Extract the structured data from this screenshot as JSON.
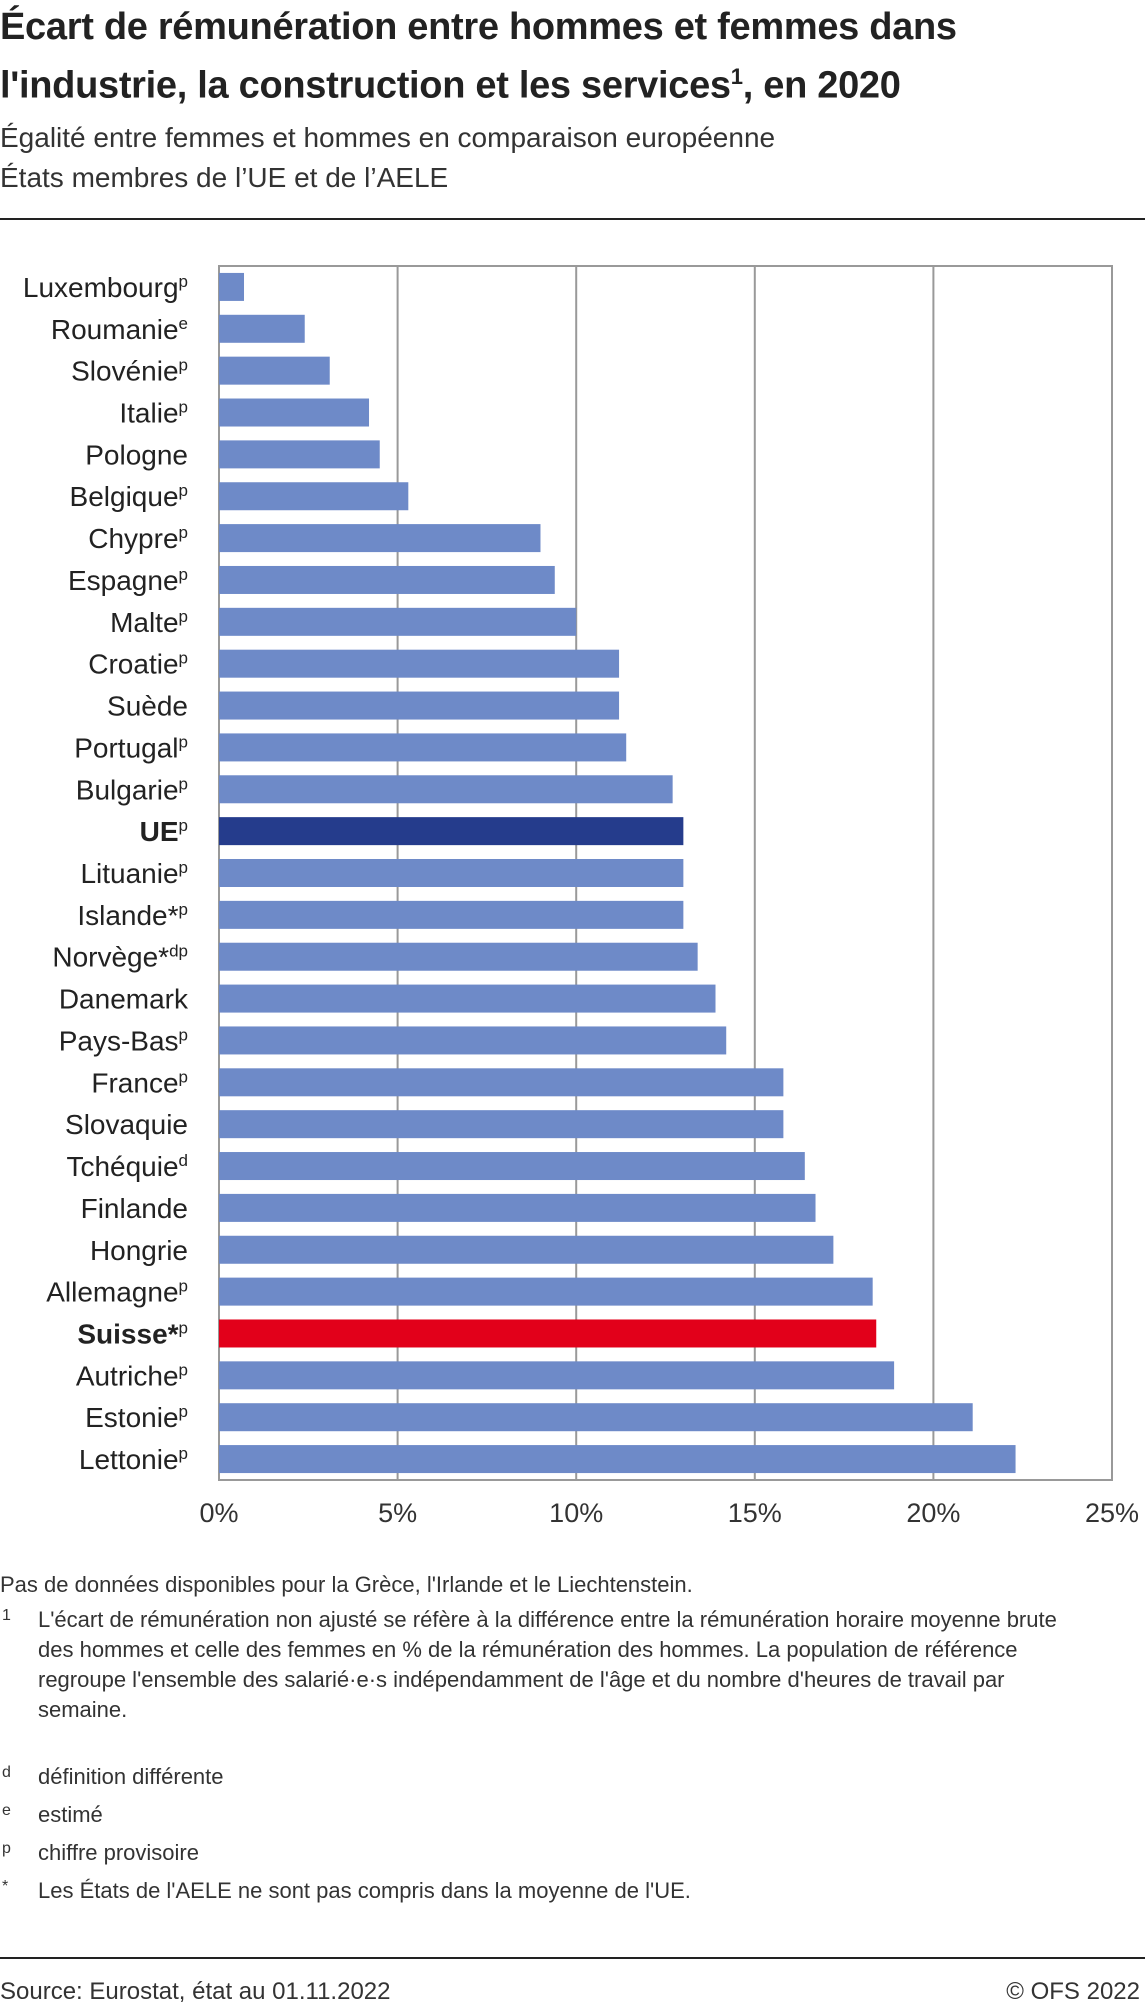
{
  "header": {
    "title": "Écart de rémunération entre hommes et femmes dans l'industrie, la construction et les services",
    "title_sup": "1",
    "title_end": ", en 2020",
    "subtitle1": "Égalité entre femmes et hommes en comparaison européenne",
    "subtitle2": "États membres de l’UE et de l’AELE"
  },
  "chart_data": {
    "type": "bar",
    "orientation": "horizontal",
    "categories": [
      "Luxembourg",
      "Roumanie",
      "Slovénie",
      "Italie",
      "Pologne",
      "Belgique",
      "Chypre",
      "Espagne",
      "Malte",
      "Croatie",
      "Suède",
      "Portugal",
      "Bulgarie",
      "UE",
      "Lituanie",
      "Islande*",
      "Norvège*",
      "Danemark",
      "Pays-Bas",
      "France",
      "Slovaquie",
      "Tchéquie",
      "Finlande",
      "Hongrie",
      "Allemagne",
      "Suisse*",
      "Autriche",
      "Estonie",
      "Lettonie"
    ],
    "category_marks": [
      "p",
      "e",
      "p",
      "p",
      "",
      "p",
      "p",
      "p",
      "p",
      "p",
      "",
      "p",
      "p",
      "p",
      "p",
      "p",
      "dp",
      "",
      "p",
      "p",
      "",
      "d",
      "",
      "",
      "p",
      "p",
      "p",
      "p",
      "p"
    ],
    "values": [
      0.7,
      2.4,
      3.1,
      4.2,
      4.5,
      5.3,
      9.0,
      9.4,
      10.0,
      11.2,
      11.2,
      11.4,
      12.7,
      13.0,
      13.0,
      13.0,
      13.4,
      13.9,
      14.2,
      15.8,
      15.8,
      16.4,
      16.7,
      17.2,
      18.3,
      18.4,
      18.9,
      21.1,
      22.3
    ],
    "highlight": {
      "UE": "#253c8c",
      "Suisse*": "#e2001a"
    },
    "bold_categories": [
      "UE",
      "Suisse*"
    ],
    "bar_color": "#6e8ac8",
    "xlim": [
      0,
      25
    ],
    "xticks": [
      "0%",
      "5%",
      "10%",
      "15%",
      "20%",
      "25%"
    ],
    "grid": true,
    "xlabel": "",
    "ylabel": ""
  },
  "footnotes": {
    "note": "Pas de données disponibles pour la Grèce, l'Irlande et le Liechtenstein.",
    "items": [
      {
        "mark": "1",
        "text": "L'écart de rémunération non ajusté se réfère à la différence entre la rémunération horaire moyenne brute des hommes et celle des femmes en % de la rémunération des hommes. La population de référence regroupe l'ensemble des salarié·e·s indépendamment de l'âge et du nombre d'heures de travail par semaine."
      },
      {
        "mark": "d",
        "text": "définition différente"
      },
      {
        "mark": "e",
        "text": "estimé"
      },
      {
        "mark": "p",
        "text": "chiffre provisoire"
      },
      {
        "mark": "*",
        "text": "Les États de l'AELE ne sont pas compris dans la moyenne de l'UE."
      }
    ]
  },
  "footer": {
    "source": "Source: Eurostat, état au 01.11.2022",
    "copyright": "© OFS 2022"
  }
}
